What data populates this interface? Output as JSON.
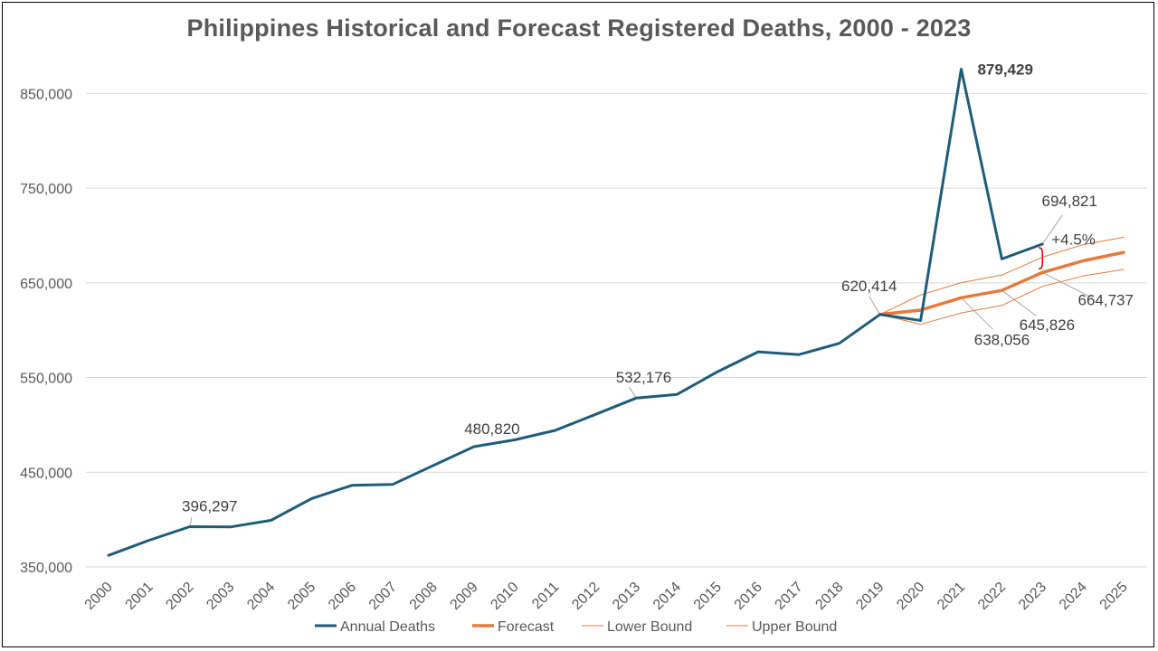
{
  "chart_data": {
    "type": "line",
    "title": "Philippines Historical and Forecast Registered Deaths, 2000 - 2023",
    "x": [
      "2000",
      "2001",
      "2002",
      "2003",
      "2004",
      "2005",
      "2006",
      "2007",
      "2008",
      "2009",
      "2010",
      "2011",
      "2012",
      "2013",
      "2014",
      "2015",
      "2016",
      "2017",
      "2018",
      "2019",
      "2020",
      "2021",
      "2022",
      "2023",
      "2024",
      "2025"
    ],
    "ylim": [
      350000,
      900000
    ],
    "yticks": [
      350000,
      450000,
      550000,
      650000,
      750000,
      850000
    ],
    "ytick_labels": [
      "350,000",
      "450,000",
      "550,000",
      "650,000",
      "750,000",
      "850,000"
    ],
    "grid": true,
    "legend_position": "bottom",
    "series": [
      {
        "name": "Annual Deaths",
        "color": "#1f5c7a",
        "values": [
          366000,
          382000,
          396297,
          396000,
          403000,
          426000,
          440000,
          441000,
          461000,
          480820,
          488000,
          498000,
          515000,
          532176,
          536000,
          560000,
          581000,
          578000,
          590000,
          620414,
          614000,
          879429,
          679000,
          694821,
          null,
          null
        ]
      },
      {
        "name": "Forecast",
        "color": "#e57a3c",
        "values": [
          null,
          null,
          null,
          null,
          null,
          null,
          null,
          null,
          null,
          null,
          null,
          null,
          null,
          null,
          null,
          null,
          null,
          null,
          null,
          620414,
          625000,
          638056,
          645826,
          664737,
          677000,
          686000
        ]
      },
      {
        "name": "Lower Bound",
        "color": "#e57a3c",
        "values": [
          null,
          null,
          null,
          null,
          null,
          null,
          null,
          null,
          null,
          null,
          null,
          null,
          null,
          null,
          null,
          null,
          null,
          null,
          null,
          620414,
          610000,
          622000,
          630000,
          650000,
          661000,
          668000
        ]
      },
      {
        "name": "Upper Bound",
        "color": "#e57a3c",
        "values": [
          null,
          null,
          null,
          null,
          null,
          null,
          null,
          null,
          null,
          null,
          null,
          null,
          null,
          null,
          null,
          null,
          null,
          null,
          null,
          620414,
          641000,
          654000,
          662000,
          681000,
          694000,
          702000
        ]
      }
    ],
    "annotations": [
      {
        "text": "396,297",
        "x": "2002",
        "y": 396297
      },
      {
        "text": "480,820",
        "x": "2009",
        "y": 480820
      },
      {
        "text": "532,176",
        "x": "2013",
        "y": 532176
      },
      {
        "text": "620,414",
        "x": "2019",
        "y": 620414
      },
      {
        "text": "879,429",
        "x": "2021",
        "y": 879429,
        "color": "#c00000",
        "bold": true
      },
      {
        "text": "694,821",
        "x": "2023",
        "y": 694821
      },
      {
        "text": "638,056",
        "x": "2021",
        "y": 638056
      },
      {
        "text": "645,826",
        "x": "2022",
        "y": 645826
      },
      {
        "text": "664,737",
        "x": "2023",
        "y": 664737
      },
      {
        "text": "+4.5%",
        "x": "2023",
        "y": 680000,
        "color": "#e00000"
      }
    ]
  }
}
